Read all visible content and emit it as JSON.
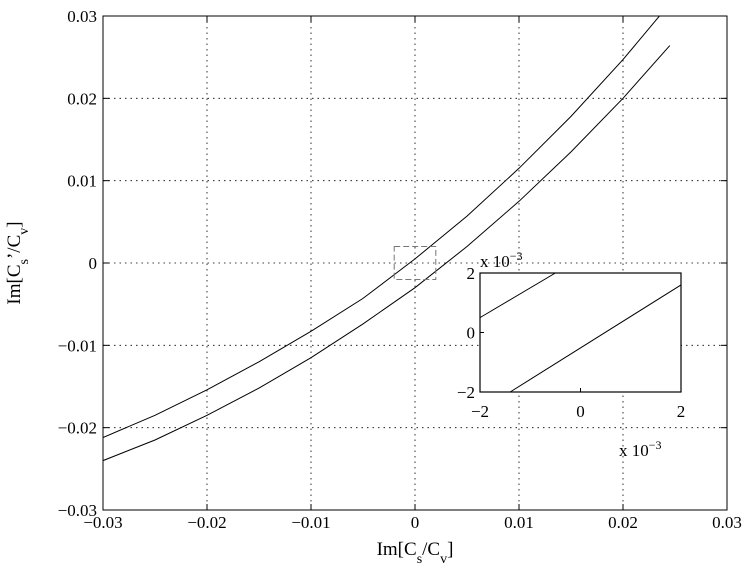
{
  "chart_data": [
    {
      "type": "line",
      "title": "",
      "xlabel": "Im[C_s/C_v]",
      "ylabel": "Im[C_s'/C_v]",
      "xlim": [
        -0.03,
        0.03
      ],
      "ylim": [
        -0.03,
        0.03
      ],
      "grid": true,
      "xticks": [
        "-0.03",
        "-0.02",
        "-0.01",
        "0",
        "0.01",
        "0.02",
        "0.03"
      ],
      "yticks": [
        "-0.03",
        "-0.02",
        "-0.01",
        "0",
        "0.01",
        "0.02",
        "0.03"
      ],
      "zoom_box": {
        "x": [
          -0.002,
          0.002
        ],
        "y": [
          -0.002,
          0.002
        ]
      },
      "series": [
        {
          "x": [
            -0.03,
            -0.025,
            -0.02,
            -0.015,
            -0.01,
            -0.005,
            0.0,
            0.005,
            0.01,
            0.015,
            0.02,
            0.0245
          ],
          "y": [
            -0.0212,
            -0.0185,
            -0.0154,
            -0.012,
            -0.0083,
            -0.0043,
            0.0005,
            0.0057,
            0.0115,
            0.0178,
            0.0247,
            0.0315
          ]
        },
        {
          "x": [
            -0.03,
            -0.025,
            -0.02,
            -0.015,
            -0.01,
            -0.005,
            0.0,
            0.005,
            0.01,
            0.015,
            0.02,
            0.0245
          ],
          "y": [
            -0.024,
            -0.0215,
            -0.0185,
            -0.0152,
            -0.0115,
            -0.0074,
            -0.003,
            0.002,
            0.0075,
            0.0135,
            0.02,
            0.0264
          ]
        }
      ]
    },
    {
      "type": "line",
      "title": "",
      "xlim": [
        -0.002,
        0.002
      ],
      "ylim": [
        -0.002,
        0.002
      ],
      "xticks": [
        "-2",
        "0",
        "2"
      ],
      "yticks": [
        "-2",
        "0",
        "2"
      ],
      "exponent_label": {
        "base": "x 10",
        "exp": "-3"
      },
      "grid": false,
      "series": [
        {
          "x": [
            -0.002,
            -0.0005
          ],
          "y": [
            0.0005,
            0.002
          ]
        },
        {
          "x": [
            -0.0014,
            0.002
          ],
          "y": [
            -0.002,
            0.0016
          ]
        }
      ]
    }
  ]
}
